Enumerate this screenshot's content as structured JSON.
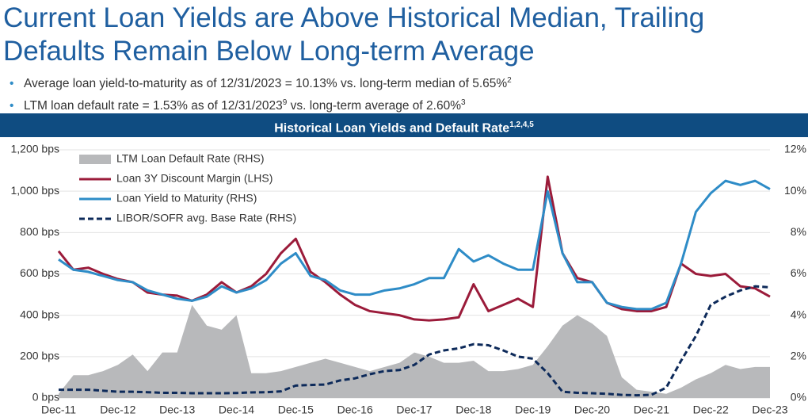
{
  "header": {
    "title_lines": [
      "Current Loan Yields are Above Historical Median, Trailing",
      "Defaults Remain Below Long-term Average"
    ],
    "bullets": [
      [
        {
          "text": "Average loan yield-to-maturity as of 12/31/2023 = 10.13% vs. long-term median of 5.65%"
        },
        {
          "sup": "2"
        }
      ],
      [
        {
          "text": "LTM loan default rate = 1.53% as of 12/31/2023"
        },
        {
          "sup": "9"
        },
        {
          "text": " vs. long-term average of 2.60%"
        },
        {
          "sup": "3"
        }
      ]
    ]
  },
  "chart_data": {
    "type": "line",
    "title": "Historical Loan Yields and Default Rate",
    "title_sup": "1,2,4,5",
    "categories": [
      "Dec-11",
      null,
      null,
      null,
      "Dec-12",
      null,
      null,
      null,
      "Dec-13",
      null,
      null,
      null,
      "Dec-14",
      null,
      null,
      null,
      "Dec-15",
      null,
      null,
      null,
      "Dec-16",
      null,
      null,
      null,
      "Dec-17",
      null,
      null,
      null,
      "Dec-18",
      null,
      null,
      null,
      "Dec-19",
      null,
      null,
      null,
      "Dec-20",
      null,
      null,
      null,
      "Dec-21",
      null,
      null,
      null,
      "Dec-22",
      null,
      null,
      null,
      "Dec-23"
    ],
    "ylim": [
      0,
      1200
    ],
    "yticks": [
      {
        "value": 0,
        "label": "0 bps"
      },
      {
        "value": 200,
        "label": "200 bps"
      },
      {
        "value": 400,
        "label": "400 bps"
      },
      {
        "value": 600,
        "label": "600 bps"
      },
      {
        "value": 800,
        "label": "800 bps"
      },
      {
        "value": 1000,
        "label": "1,000 bps"
      },
      {
        "value": 1200,
        "label": "1,200 bps"
      }
    ],
    "y2lim": [
      0,
      12
    ],
    "y2ticks": [
      {
        "value": 0,
        "label": "0%"
      },
      {
        "value": 2,
        "label": "2%"
      },
      {
        "value": 4,
        "label": "4%"
      },
      {
        "value": 6,
        "label": "6%"
      },
      {
        "value": 8,
        "label": "8%"
      },
      {
        "value": 10,
        "label": "10%"
      },
      {
        "value": 12,
        "label": "12%"
      }
    ],
    "grid": true,
    "legend": "top-left",
    "series": [
      {
        "name": "LTM Loan Default Rate (RHS)",
        "kind": "area",
        "axis": "y2",
        "color": "#b8b9bb",
        "values": [
          0.2,
          1.1,
          1.1,
          1.3,
          1.6,
          2.1,
          1.3,
          2.2,
          2.2,
          4.5,
          3.5,
          3.3,
          4.0,
          1.2,
          1.2,
          1.3,
          1.5,
          1.7,
          1.9,
          1.7,
          1.5,
          1.3,
          1.5,
          1.7,
          2.2,
          2.0,
          1.7,
          1.7,
          1.8,
          1.3,
          1.3,
          1.4,
          1.6,
          2.5,
          3.5,
          4.0,
          3.6,
          3.0,
          1.0,
          0.4,
          0.3,
          0.2,
          0.5,
          0.9,
          1.2,
          1.6,
          1.4,
          1.5,
          1.5
        ]
      },
      {
        "name": "Loan 3Y Discount Margin (LHS)",
        "kind": "line",
        "color": "#9b1b3a",
        "values": [
          710,
          620,
          630,
          600,
          575,
          560,
          510,
          500,
          495,
          470,
          500,
          560,
          510,
          540,
          600,
          700,
          770,
          610,
          560,
          500,
          450,
          420,
          410,
          400,
          380,
          375,
          380,
          390,
          550,
          420,
          450,
          480,
          440,
          1070,
          700,
          580,
          560,
          460,
          430,
          420,
          420,
          440,
          650,
          600,
          590,
          600,
          540,
          530,
          490
        ]
      },
      {
        "name": "Loan Yield to Maturity (RHS)",
        "kind": "line",
        "axis": "y2",
        "color": "#2e8cc7",
        "values": [
          6.7,
          6.2,
          6.1,
          5.9,
          5.7,
          5.6,
          5.2,
          5.0,
          4.8,
          4.7,
          4.9,
          5.4,
          5.1,
          5.3,
          5.7,
          6.5,
          7.0,
          5.9,
          5.7,
          5.2,
          5.0,
          5.0,
          5.2,
          5.3,
          5.5,
          5.8,
          5.8,
          7.2,
          6.6,
          6.9,
          6.5,
          6.2,
          6.2,
          10.0,
          7.0,
          5.6,
          5.6,
          4.6,
          4.4,
          4.3,
          4.3,
          4.6,
          6.5,
          9.0,
          9.9,
          10.5,
          10.3,
          10.5,
          10.1
        ]
      },
      {
        "name": "LIBOR/SOFR avg. Base Rate (RHS)",
        "kind": "line",
        "dash": true,
        "axis": "y2",
        "color": "#0d2a5a",
        "values": [
          0.4,
          0.4,
          0.4,
          0.35,
          0.3,
          0.3,
          0.28,
          0.25,
          0.25,
          0.23,
          0.23,
          0.23,
          0.24,
          0.27,
          0.28,
          0.32,
          0.6,
          0.63,
          0.65,
          0.85,
          0.95,
          1.15,
          1.3,
          1.35,
          1.6,
          2.1,
          2.3,
          2.4,
          2.6,
          2.55,
          2.3,
          2.0,
          1.9,
          1.2,
          0.3,
          0.25,
          0.23,
          0.2,
          0.15,
          0.13,
          0.15,
          0.5,
          1.8,
          3.0,
          4.5,
          4.9,
          5.2,
          5.4,
          5.35
        ]
      }
    ]
  }
}
